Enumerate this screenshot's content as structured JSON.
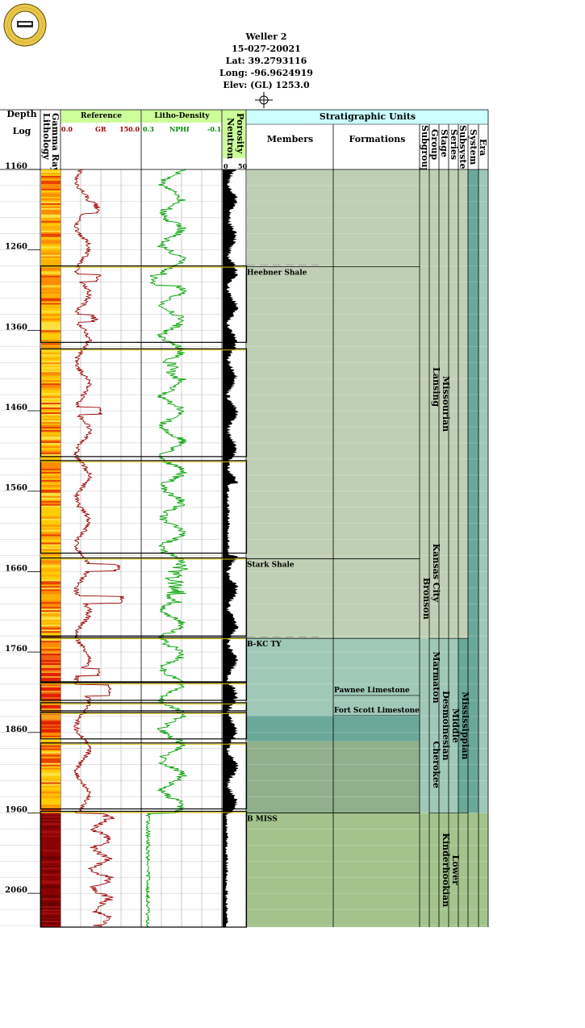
{
  "header": {
    "well_name": "Weller 2",
    "api": "15-027-20021",
    "lat": "Lat: 39.2793116",
    "long": "Long: -96.9624919",
    "elev": "Elev: (GL) 1253.0",
    "seal_text": "KANSAS GEOLOGICAL SURVEY"
  },
  "columns": {
    "depth_title": "Depth",
    "log_title": "Log",
    "lithology": "Lithology",
    "gamma_ray": "Gamma Ray",
    "reference": "Reference",
    "gr_min": "0.0",
    "gr_name": "GR",
    "gr_max": "150.0",
    "litho_density": "Litho-Density",
    "nphi_min": "0.3",
    "nphi_name": "NPHI",
    "nphi_max": "-0.1",
    "porosity": "Porosity",
    "neutron": "Neutron",
    "neutron_min": "0",
    "neutron_max": "50",
    "strat_units": "Stratigraphic Units",
    "members": "Members",
    "formations": "Formations",
    "subgroup": "Subgroup",
    "group": "Group",
    "stage": "Stage",
    "series": "Series",
    "subsystem": "Subsystem",
    "system": "System",
    "era": "Era"
  },
  "colors": {
    "gr_curve": "#9b0000",
    "nphi_curve": "#00a000",
    "track_header": "#ccff99",
    "strat_header": "#ccffff",
    "missourian_fill": "#bfcfb5",
    "desmoinesian_fill": "#9fc8b8",
    "desmoinesian_dark": "#6aa89a",
    "mississippian_fill": "#8fb08a",
    "kinderhookian_fill": "#a2c48c"
  },
  "chart_data": {
    "type": "line",
    "depth_axis": {
      "label": "Depth",
      "ticks": [
        1160,
        1260,
        1360,
        1460,
        1560,
        1660,
        1760,
        1860,
        1960,
        2060
      ],
      "range": [
        1160,
        2102
      ]
    },
    "series": [
      {
        "name": "GR",
        "units_range": [
          0,
          150
        ]
      },
      {
        "name": "NPHI",
        "units_range": [
          0.3,
          -0.1
        ]
      }
    ],
    "members": [
      {
        "name": "Heebner Shale",
        "top": 1281
      },
      {
        "name": "Stark Shale",
        "top": 1644
      },
      {
        "name": "B-KC TY",
        "top": 1743
      },
      {
        "name": "B MISS",
        "top": 1960
      }
    ],
    "formations": [
      {
        "name": "Pawnee Limestone",
        "top": 1802
      },
      {
        "name": "Fort Scott Limestone",
        "top": 1827
      }
    ],
    "subgroup": [
      {
        "name": "Bronson",
        "top": 1644,
        "bottom": 1743
      }
    ],
    "group": [
      {
        "name": "Lansing",
        "top": 1281,
        "bottom": 1580
      },
      {
        "name": "Kansas City",
        "top": 1580,
        "bottom": 1743
      },
      {
        "name": "Marmaton",
        "top": 1743,
        "bottom": 1840
      },
      {
        "name": "Cherokee",
        "top": 1840,
        "bottom": 1960
      }
    ],
    "stage": [
      {
        "name": "Missourian",
        "top": 1160,
        "bottom": 1743
      },
      {
        "name": "Desmoinesian",
        "top": 1743,
        "bottom": 1960
      },
      {
        "name": "Kinderhookian",
        "top": 1960,
        "bottom": 2102
      }
    ],
    "series_units": [
      {
        "name": "Middle",
        "top": 1743,
        "bottom": 1960
      },
      {
        "name": "Lower",
        "top": 1960,
        "bottom": 2102
      }
    ],
    "system": [
      {
        "name": "Mississippian",
        "top": 1743,
        "bottom": 1960
      }
    ],
    "core_boxes": [
      [
        1280,
        1375
      ],
      [
        1383,
        1517
      ],
      [
        1522,
        1637
      ],
      [
        1643,
        1740
      ],
      [
        1742,
        1797
      ],
      [
        1798,
        1820
      ],
      [
        1823,
        1833
      ],
      [
        1835,
        1868
      ],
      [
        1873,
        1955
      ],
      [
        1958,
        2102
      ]
    ]
  }
}
